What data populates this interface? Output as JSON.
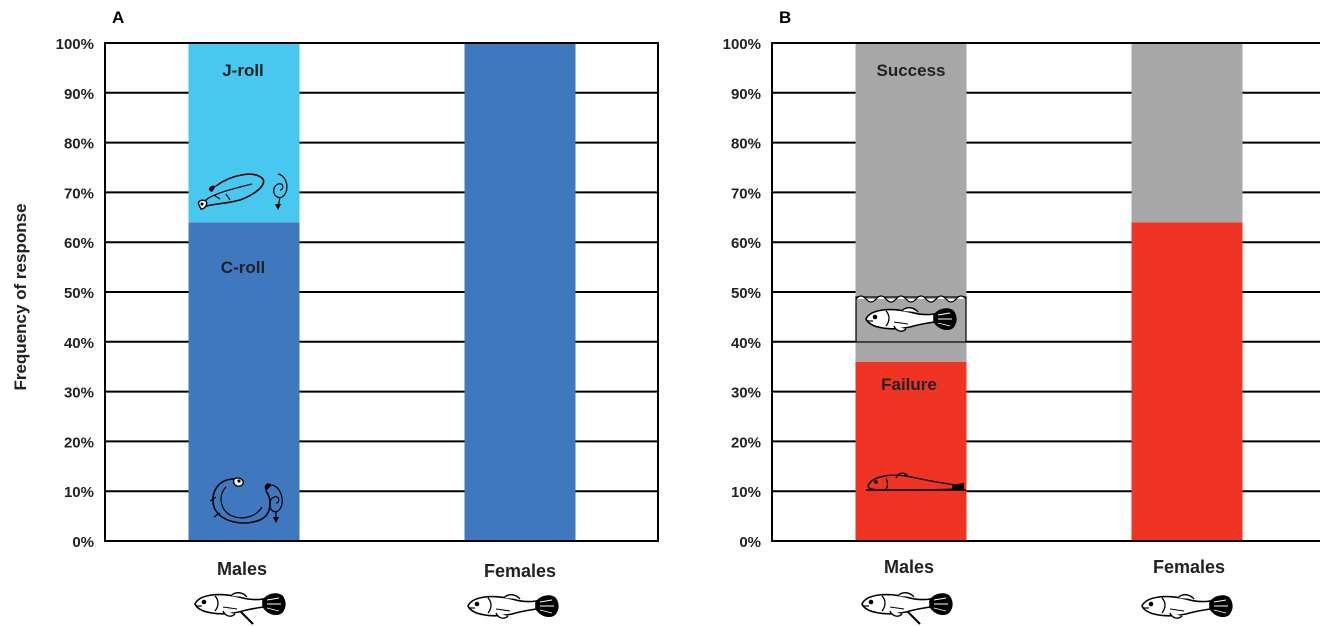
{
  "ylabel": "Frequency of response",
  "colors": {
    "c_roll": "#3f78bf",
    "j_roll": "#48c8f0",
    "success": "#a7a7a7",
    "failure": "#ef3424",
    "gridline": "#000000"
  },
  "icons": {
    "male_fish": "male-fish-icon",
    "female_fish": "female-fish-icon",
    "j_roll": "j-roll-fish-icon",
    "c_roll": "c-roll-fish-icon",
    "upright": "upright-fish-icon",
    "lying": "lying-fish-icon"
  },
  "chart_data": [
    {
      "panel": "A",
      "type": "bar",
      "stacked": true,
      "categories": [
        "Males",
        "Females"
      ],
      "ylim": [
        0,
        100
      ],
      "yticks": [
        "0%",
        "10%",
        "20%",
        "30%",
        "40%",
        "50%",
        "60%",
        "70%",
        "80%",
        "90%",
        "100%"
      ],
      "grid": true,
      "series": [
        {
          "name": "C-roll",
          "values": [
            64,
            100
          ]
        },
        {
          "name": "J-roll",
          "values": [
            36,
            0
          ]
        }
      ]
    },
    {
      "panel": "B",
      "type": "bar",
      "stacked": true,
      "categories": [
        "Males",
        "Females"
      ],
      "ylim": [
        0,
        100
      ],
      "yticks": [
        "0%",
        "10%",
        "20%",
        "30%",
        "40%",
        "50%",
        "60%",
        "70%",
        "80%",
        "90%",
        "100%"
      ],
      "grid": true,
      "series": [
        {
          "name": "Failure",
          "values": [
            36,
            64
          ]
        },
        {
          "name": "Success",
          "values": [
            64,
            36
          ]
        }
      ]
    }
  ]
}
